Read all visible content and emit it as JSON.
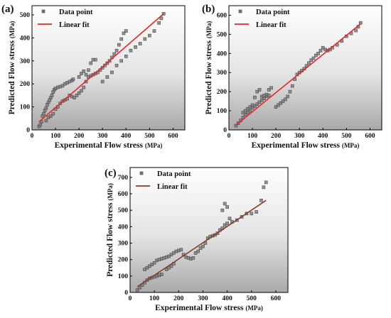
{
  "chart_data": [
    {
      "type": "scatter",
      "panel_label": "(a)",
      "xlabel": "Experimental Flow stress",
      "xunit": "(MPa)",
      "ylabel": "Predicted Flow stress",
      "yunit": "(MPa)",
      "xlim": [
        0,
        650
      ],
      "ylim": [
        0,
        540
      ],
      "xticks": [
        0,
        100,
        200,
        300,
        400,
        500,
        600
      ],
      "yticks": [
        0,
        100,
        200,
        300,
        400,
        500
      ],
      "legend": {
        "position": "top-left",
        "entries": [
          "Data point",
          "Linear fit"
        ]
      },
      "series": [
        {
          "name": "Data point",
          "marker": "square",
          "color": "#555555",
          "points": [
            [
              30,
              15
            ],
            [
              35,
              22
            ],
            [
              40,
              35
            ],
            [
              45,
              60
            ],
            [
              50,
              70
            ],
            [
              55,
              85
            ],
            [
              60,
              95
            ],
            [
              65,
              110
            ],
            [
              70,
              120
            ],
            [
              75,
              130
            ],
            [
              80,
              140
            ],
            [
              85,
              150
            ],
            [
              90,
              165
            ],
            [
              95,
              175
            ],
            [
              100,
              180
            ],
            [
              110,
              185
            ],
            [
              120,
              188
            ],
            [
              130,
              192
            ],
            [
              140,
              200
            ],
            [
              150,
              205
            ],
            [
              160,
              210
            ],
            [
              170,
              215
            ],
            [
              175,
              220
            ],
            [
              60,
              40
            ],
            [
              70,
              55
            ],
            [
              80,
              60
            ],
            [
              90,
              70
            ],
            [
              100,
              90
            ],
            [
              110,
              100
            ],
            [
              120,
              115
            ],
            [
              130,
              125
            ],
            [
              140,
              130
            ],
            [
              150,
              135
            ],
            [
              160,
              150
            ],
            [
              170,
              145
            ],
            [
              180,
              140
            ],
            [
              190,
              150
            ],
            [
              200,
              160
            ],
            [
              210,
              170
            ],
            [
              220,
              185
            ],
            [
              230,
              210
            ],
            [
              240,
              260
            ],
            [
              250,
              290
            ],
            [
              260,
              305
            ],
            [
              270,
              305
            ],
            [
              200,
              230
            ],
            [
              210,
              245
            ],
            [
              220,
              255
            ],
            [
              230,
              240
            ],
            [
              240,
              230
            ],
            [
              250,
              235
            ],
            [
              260,
              240
            ],
            [
              270,
              245
            ],
            [
              280,
              250
            ],
            [
              290,
              260
            ],
            [
              300,
              270
            ],
            [
              310,
              280
            ],
            [
              320,
              290
            ],
            [
              330,
              300
            ],
            [
              340,
              315
            ],
            [
              350,
              330
            ],
            [
              360,
              345
            ],
            [
              370,
              370
            ],
            [
              380,
              395
            ],
            [
              390,
              420
            ],
            [
              400,
              430
            ],
            [
              300,
              210
            ],
            [
              320,
              230
            ],
            [
              340,
              250
            ],
            [
              360,
              280
            ],
            [
              380,
              300
            ],
            [
              400,
              320
            ],
            [
              420,
              345
            ],
            [
              440,
              360
            ],
            [
              460,
              375
            ],
            [
              480,
              395
            ],
            [
              500,
              410
            ],
            [
              520,
              430
            ],
            [
              540,
              465
            ],
            [
              550,
              485
            ],
            [
              560,
              505
            ]
          ]
        },
        {
          "name": "Linear fit",
          "type": "line",
          "color": "#e8262b",
          "points": [
            [
              30,
              35
            ],
            [
              560,
              505
            ]
          ]
        }
      ]
    },
    {
      "type": "scatter",
      "panel_label": "(b)",
      "xlabel": "Experimental Flow stress",
      "xunit": "(MPa)",
      "ylabel": "Predicted Flow stress",
      "yunit": "(MPa)",
      "xlim": [
        0,
        650
      ],
      "ylim": [
        0,
        650
      ],
      "xticks": [
        0,
        100,
        200,
        300,
        400,
        500,
        600
      ],
      "yticks": [
        0,
        100,
        200,
        300,
        400,
        500,
        600
      ],
      "legend": {
        "position": "top-left",
        "entries": [
          "Data point",
          "Linear fit"
        ]
      },
      "series": [
        {
          "name": "Data point",
          "marker": "square",
          "color": "#555555",
          "points": [
            [
              30,
              22
            ],
            [
              40,
              35
            ],
            [
              50,
              50
            ],
            [
              60,
              65
            ],
            [
              70,
              80
            ],
            [
              80,
              90
            ],
            [
              90,
              100
            ],
            [
              100,
              115
            ],
            [
              110,
              125
            ],
            [
              120,
              135
            ],
            [
              130,
              145
            ],
            [
              140,
              155
            ],
            [
              150,
              165
            ],
            [
              160,
              175
            ],
            [
              170,
              180
            ],
            [
              60,
              90
            ],
            [
              70,
              100
            ],
            [
              80,
              110
            ],
            [
              90,
              120
            ],
            [
              100,
              130
            ],
            [
              110,
              170
            ],
            [
              120,
              200
            ],
            [
              130,
              210
            ],
            [
              140,
              175
            ],
            [
              150,
              180
            ],
            [
              160,
              185
            ],
            [
              170,
              210
            ],
            [
              180,
              220
            ],
            [
              200,
              120
            ],
            [
              210,
              130
            ],
            [
              220,
              140
            ],
            [
              230,
              150
            ],
            [
              240,
              160
            ],
            [
              250,
              175
            ],
            [
              260,
              200
            ],
            [
              270,
              230
            ],
            [
              280,
              265
            ],
            [
              290,
              290
            ],
            [
              300,
              300
            ],
            [
              310,
              310
            ],
            [
              320,
              320
            ],
            [
              330,
              335
            ],
            [
              340,
              350
            ],
            [
              350,
              365
            ],
            [
              360,
              375
            ],
            [
              370,
              390
            ],
            [
              380,
              400
            ],
            [
              390,
              415
            ],
            [
              400,
              430
            ],
            [
              410,
              420
            ],
            [
              420,
              415
            ],
            [
              430,
              420
            ],
            [
              440,
              430
            ],
            [
              460,
              445
            ],
            [
              480,
              465
            ],
            [
              500,
              490
            ],
            [
              520,
              505
            ],
            [
              540,
              520
            ],
            [
              550,
              540
            ],
            [
              560,
              560
            ]
          ]
        },
        {
          "name": "Linear fit",
          "type": "line",
          "color": "#e8262b",
          "points": [
            [
              30,
              25
            ],
            [
              560,
              555
            ]
          ]
        }
      ]
    },
    {
      "type": "scatter",
      "panel_label": "(c)",
      "xlabel": "Experimental Flow stress",
      "xunit": "(MPa)",
      "ylabel": "Predicted Flow stress",
      "yunit": "(MPa)",
      "xlim": [
        0,
        650
      ],
      "ylim": [
        0,
        760
      ],
      "xticks": [
        0,
        100,
        200,
        300,
        400,
        500,
        600
      ],
      "yticks": [
        0,
        100,
        200,
        300,
        400,
        500,
        600,
        700
      ],
      "legend": {
        "position": "top-left",
        "entries": [
          "Data point",
          "Linear fit"
        ]
      },
      "series": [
        {
          "name": "Data point",
          "marker": "square",
          "color": "#555555",
          "points": [
            [
              30,
              15
            ],
            [
              40,
              30
            ],
            [
              50,
              45
            ],
            [
              60,
              60
            ],
            [
              70,
              75
            ],
            [
              80,
              85
            ],
            [
              90,
              90
            ],
            [
              100,
              95
            ],
            [
              110,
              100
            ],
            [
              120,
              105
            ],
            [
              130,
              110
            ],
            [
              60,
              140
            ],
            [
              70,
              150
            ],
            [
              80,
              160
            ],
            [
              90,
              170
            ],
            [
              100,
              180
            ],
            [
              110,
              195
            ],
            [
              120,
              200
            ],
            [
              130,
              205
            ],
            [
              140,
              210
            ],
            [
              150,
              215
            ],
            [
              160,
              220
            ],
            [
              170,
              230
            ],
            [
              180,
              240
            ],
            [
              190,
              250
            ],
            [
              200,
              255
            ],
            [
              210,
              260
            ],
            [
              220,
              230
            ],
            [
              230,
              215
            ],
            [
              240,
              210
            ],
            [
              250,
              205
            ],
            [
              260,
              210
            ],
            [
              150,
              140
            ],
            [
              160,
              150
            ],
            [
              170,
              160
            ],
            [
              180,
              175
            ],
            [
              270,
              240
            ],
            [
              280,
              250
            ],
            [
              290,
              270
            ],
            [
              300,
              280
            ],
            [
              310,
              300
            ],
            [
              320,
              330
            ],
            [
              330,
              340
            ],
            [
              340,
              345
            ],
            [
              350,
              350
            ],
            [
              360,
              360
            ],
            [
              370,
              380
            ],
            [
              380,
              390
            ],
            [
              390,
              410
            ],
            [
              400,
              420
            ],
            [
              380,
              500
            ],
            [
              390,
              540
            ],
            [
              400,
              520
            ],
            [
              410,
              450
            ],
            [
              420,
              430
            ],
            [
              440,
              440
            ],
            [
              460,
              460
            ],
            [
              480,
              480
            ],
            [
              500,
              480
            ],
            [
              520,
              490
            ],
            [
              540,
              560
            ],
            [
              550,
              640
            ],
            [
              560,
              670
            ]
          ]
        },
        {
          "name": "Linear fit",
          "type": "line",
          "color": "#8b3a2a",
          "points": [
            [
              30,
              35
            ],
            [
              560,
              560
            ]
          ]
        }
      ]
    }
  ]
}
